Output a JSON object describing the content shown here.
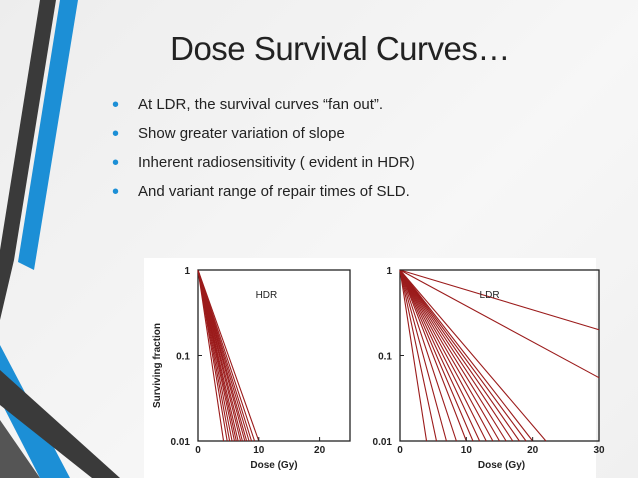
{
  "slide": {
    "title": "Dose Survival Curves…",
    "bullets": [
      "At LDR, the survival curves “fan out”.",
      "Show greater variation of slope",
      "Inherent radiosensitivity ( evident in HDR)",
      "And variant range of repair times of SLD."
    ],
    "colors": {
      "accent_blue": "#1c8fd6",
      "accent_dark": "#3a3a3a",
      "curve": "#9b1b1b"
    }
  },
  "chart_data": [
    {
      "type": "line",
      "panel_label": "HDR",
      "xlabel": "Dose (Gy)",
      "ylabel": "Surviving fraction",
      "x_ticks": [
        "0",
        "10",
        "20"
      ],
      "y_ticks": [
        "1",
        "0.1",
        "0.01"
      ],
      "xlim": [
        0,
        25
      ],
      "ylim": [
        0.01,
        1
      ],
      "y_scale": "log",
      "series_x_at_0_01": [
        4.2,
        4.8,
        5.2,
        5.6,
        6.0,
        6.3,
        6.6,
        7.0,
        7.3,
        7.7,
        8.0,
        8.4,
        8.8,
        9.3,
        10.0
      ]
    },
    {
      "type": "line",
      "panel_label": "LDR",
      "xlabel": "Dose (Gy)",
      "ylabel": "",
      "x_ticks": [
        "0",
        "10",
        "20",
        "30"
      ],
      "y_ticks": [
        "1",
        "0.1",
        "0.01"
      ],
      "xlim": [
        0,
        30
      ],
      "ylim": [
        0.01,
        1
      ],
      "y_scale": "log",
      "series_x_at_0_01": [
        4.0,
        5.5,
        7.0,
        8.5,
        10.0,
        11.0,
        12.0,
        13.0,
        14.0,
        15.0,
        16.0,
        17.0,
        18.0,
        19.0,
        20.0,
        22.0
      ],
      "shallow_series": [
        {
          "x_end": 30,
          "y_end": 0.055
        },
        {
          "x_end": 30,
          "y_end": 0.2
        }
      ]
    }
  ]
}
